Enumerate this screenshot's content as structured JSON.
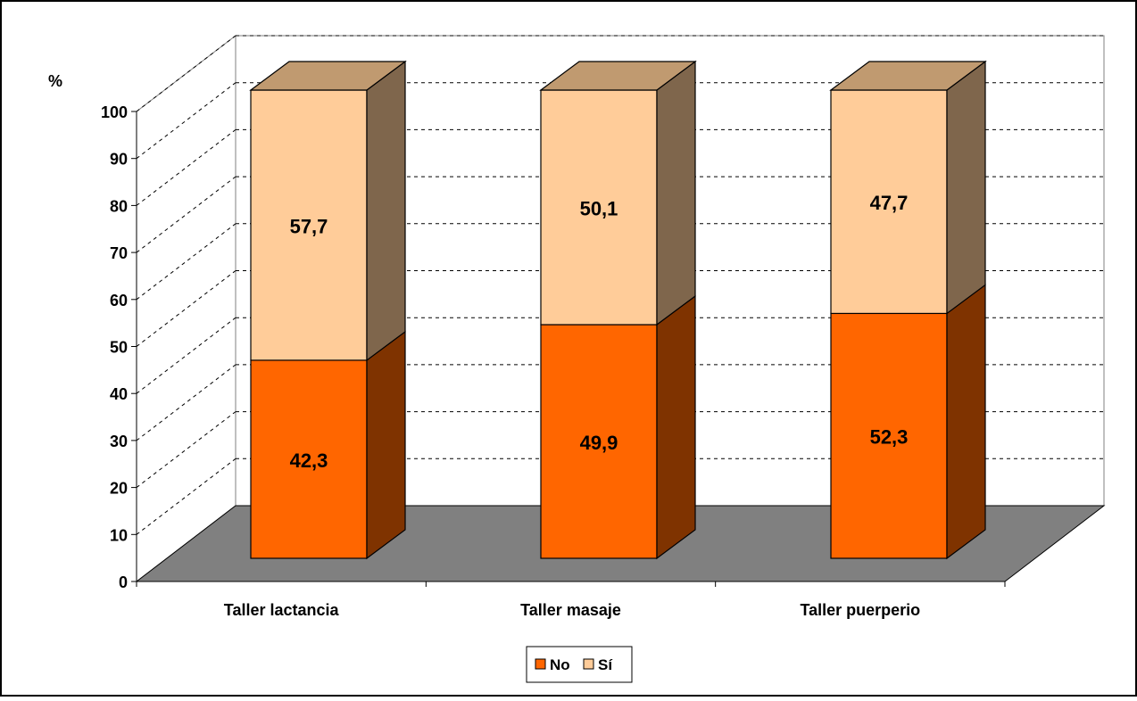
{
  "chart_data": {
    "type": "bar",
    "stacked": true,
    "three_d": true,
    "title": "",
    "xlabel": "",
    "ylabel": "%",
    "ylim": [
      0,
      100
    ],
    "yticks": [
      "0",
      "10",
      "20",
      "30",
      "40",
      "50",
      "60",
      "70",
      "80",
      "90",
      "100"
    ],
    "grid": true,
    "legend_position": "bottom",
    "categories": [
      "Taller lactancia",
      "Taller masaje",
      "Taller puerperio"
    ],
    "series": [
      {
        "name": "No",
        "values": [
          42.3,
          49.9,
          52.3
        ],
        "labels": [
          "42,3",
          "49,9",
          "52,3"
        ],
        "color": "#FF6600",
        "side_color": "#7F3300"
      },
      {
        "name": "Sí",
        "values": [
          57.7,
          50.1,
          47.7
        ],
        "labels": [
          "57,7",
          "50,1",
          "47,7"
        ],
        "color": "#FFCC99",
        "side_color": "#7F664C",
        "top_color": "#C09A70"
      }
    ],
    "floor_color": "#808080"
  }
}
